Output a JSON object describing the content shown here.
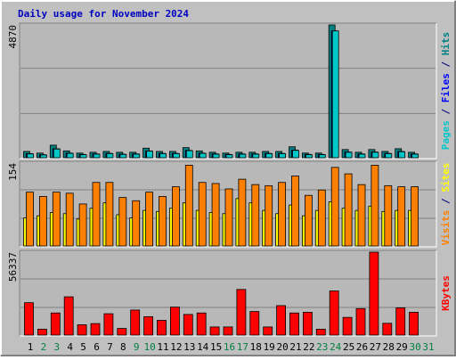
{
  "chart_data": [
    {
      "type": "bar",
      "title": "Daily usage for November 2024",
      "ylim": [
        0,
        4870
      ],
      "yticks": [
        4870
      ],
      "legend_separator": " / ",
      "series": [
        {
          "name": "Hits",
          "color": "#008080",
          "values": [
            230,
            170,
            460,
            250,
            170,
            200,
            230,
            200,
            200,
            350,
            230,
            230,
            370,
            250,
            200,
            170,
            200,
            200,
            230,
            230,
            400,
            170,
            170,
            4870,
            300,
            200,
            300,
            230,
            330,
            200,
            null
          ]
        },
        {
          "name": "Files",
          "color": "#0000ff",
          "values": [
            150,
            110,
            330,
            170,
            120,
            140,
            160,
            130,
            140,
            250,
            160,
            160,
            270,
            170,
            140,
            120,
            140,
            140,
            160,
            160,
            280,
            120,
            120,
            4650,
            210,
            140,
            210,
            160,
            230,
            140,
            null
          ]
        },
        {
          "name": "Pages",
          "color": "#00c8c8",
          "values": [
            140,
            100,
            320,
            160,
            110,
            130,
            150,
            120,
            130,
            240,
            150,
            150,
            260,
            160,
            130,
            110,
            130,
            130,
            150,
            150,
            270,
            110,
            110,
            4650,
            200,
            130,
            200,
            150,
            220,
            130,
            null
          ]
        }
      ]
    },
    {
      "type": "bar",
      "ylim": [
        0,
        154
      ],
      "yticks": [
        154
      ],
      "legend_separator": " / ",
      "series": [
        {
          "name": "Sites",
          "color": "#ffff00",
          "values": [
            52,
            56,
            62,
            60,
            50,
            70,
            80,
            58,
            52,
            66,
            64,
            70,
            80,
            66,
            62,
            60,
            88,
            80,
            66,
            60,
            76,
            56,
            66,
            82,
            70,
            66,
            74,
            64,
            66,
            66,
            null
          ]
        },
        {
          "name": "Visits",
          "color": "#ff8000",
          "values": [
            100,
            92,
            100,
            98,
            78,
            118,
            118,
            90,
            84,
            100,
            92,
            110,
            150,
            118,
            116,
            106,
            124,
            114,
            112,
            118,
            130,
            94,
            104,
            146,
            134,
            114,
            150,
            112,
            110,
            110,
            null
          ]
        }
      ]
    },
    {
      "type": "bar",
      "ylim": [
        0,
        56337
      ],
      "yticks": [
        56337
      ],
      "categories": [
        "1",
        "2",
        "3",
        "4",
        "5",
        "6",
        "7",
        "8",
        "9",
        "10",
        "11",
        "12",
        "13",
        "14",
        "15",
        "16",
        "17",
        "18",
        "19",
        "20",
        "21",
        "22",
        "23",
        "24",
        "25",
        "26",
        "27",
        "28",
        "29",
        "30",
        "31"
      ],
      "category_colors": [
        "#000000",
        "#008040",
        "#008040",
        "#000000",
        "#000000",
        "#000000",
        "#000000",
        "#000000",
        "#008040",
        "#008040",
        "#000000",
        "#000000",
        "#000000",
        "#000000",
        "#000000",
        "#008040",
        "#008040",
        "#000000",
        "#000000",
        "#000000",
        "#000000",
        "#000000",
        "#008040",
        "#008040",
        "#000000",
        "#000000",
        "#000000",
        "#000000",
        "#000000",
        "#008040",
        "#008040"
      ],
      "series": [
        {
          "name": "KBytes",
          "color": "#ff0000",
          "values": [
            22000,
            4000,
            15000,
            26000,
            7000,
            7800,
            14500,
            4500,
            17000,
            12500,
            10000,
            19000,
            14000,
            15000,
            5500,
            5500,
            31000,
            16000,
            5500,
            20000,
            15000,
            15500,
            4000,
            30000,
            12000,
            18000,
            56337,
            8000,
            18500,
            15500,
            null
          ]
        }
      ]
    }
  ]
}
